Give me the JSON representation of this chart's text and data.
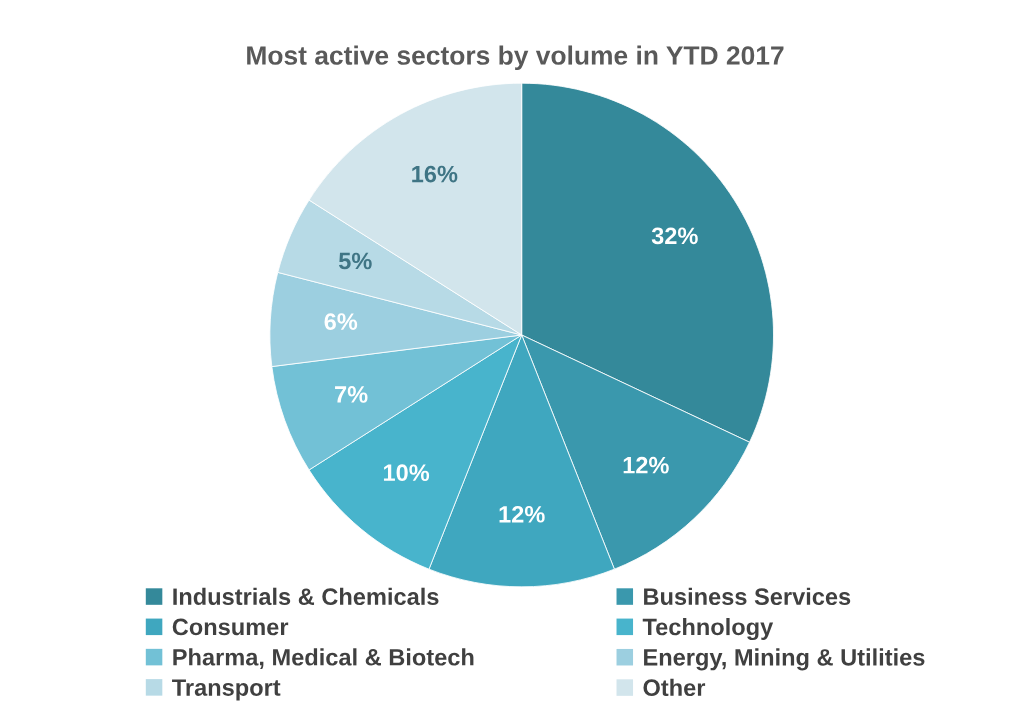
{
  "chart_data": {
    "type": "pie",
    "title": "Most active sectors by volume in YTD 2017",
    "categories": [
      "Industrials & Chemicals",
      "Business Services",
      "Consumer",
      "Technology",
      "Pharma, Medical & Biotech",
      "Energy, Mining & Utilities",
      "Transport",
      "Other"
    ],
    "values": [
      32,
      12,
      12,
      10,
      7,
      6,
      5,
      16
    ],
    "value_labels": [
      "32%",
      "12%",
      "12%",
      "10%",
      "7%",
      "6%",
      "5%",
      "16%"
    ],
    "colors": [
      "#34899a",
      "#3a98ad",
      "#3fa7bf",
      "#48b4cc",
      "#72c1d6",
      "#9ccfe0",
      "#b7dae6",
      "#d2e5ec"
    ],
    "legend": "bottom"
  }
}
